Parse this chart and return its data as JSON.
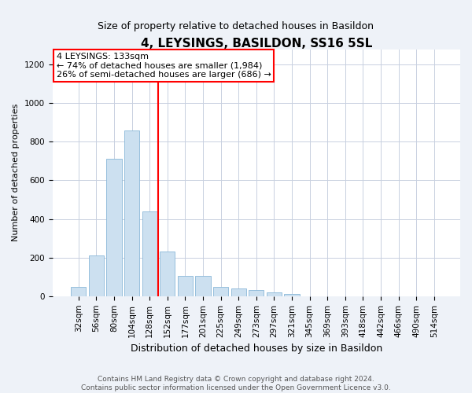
{
  "title": "4, LEYSINGS, BASILDON, SS16 5SL",
  "subtitle": "Size of property relative to detached houses in Basildon",
  "xlabel": "Distribution of detached houses by size in Basildon",
  "ylabel": "Number of detached properties",
  "bar_color": "#cce0f0",
  "bar_edge_color": "#8ab8d8",
  "categories": [
    "32sqm",
    "56sqm",
    "80sqm",
    "104sqm",
    "128sqm",
    "152sqm",
    "177sqm",
    "201sqm",
    "225sqm",
    "249sqm",
    "273sqm",
    "297sqm",
    "321sqm",
    "345sqm",
    "369sqm",
    "393sqm",
    "418sqm",
    "442sqm",
    "466sqm",
    "490sqm",
    "514sqm"
  ],
  "values": [
    50,
    210,
    710,
    860,
    440,
    230,
    105,
    105,
    50,
    40,
    30,
    20,
    10,
    0,
    0,
    0,
    0,
    0,
    0,
    0,
    0
  ],
  "ylim": [
    0,
    1280
  ],
  "yticks": [
    0,
    200,
    400,
    600,
    800,
    1000,
    1200
  ],
  "vline_x_idx": 4,
  "annotation_line1": "4 LEYSINGS: 133sqm",
  "annotation_line2": "← 74% of detached houses are smaller (1,984)",
  "annotation_line3": "26% of semi-detached houses are larger (686) →",
  "annotation_box_color": "white",
  "annotation_box_edge_color": "red",
  "vline_color": "red",
  "footer_text": "Contains HM Land Registry data © Crown copyright and database right 2024.\nContains public sector information licensed under the Open Government Licence v3.0.",
  "background_color": "#eef2f8",
  "plot_background_color": "white",
  "grid_color": "#c8d0e0",
  "title_fontsize": 11,
  "subtitle_fontsize": 9,
  "ylabel_fontsize": 8,
  "xlabel_fontsize": 9,
  "tick_fontsize": 7.5,
  "annotation_fontsize": 8
}
